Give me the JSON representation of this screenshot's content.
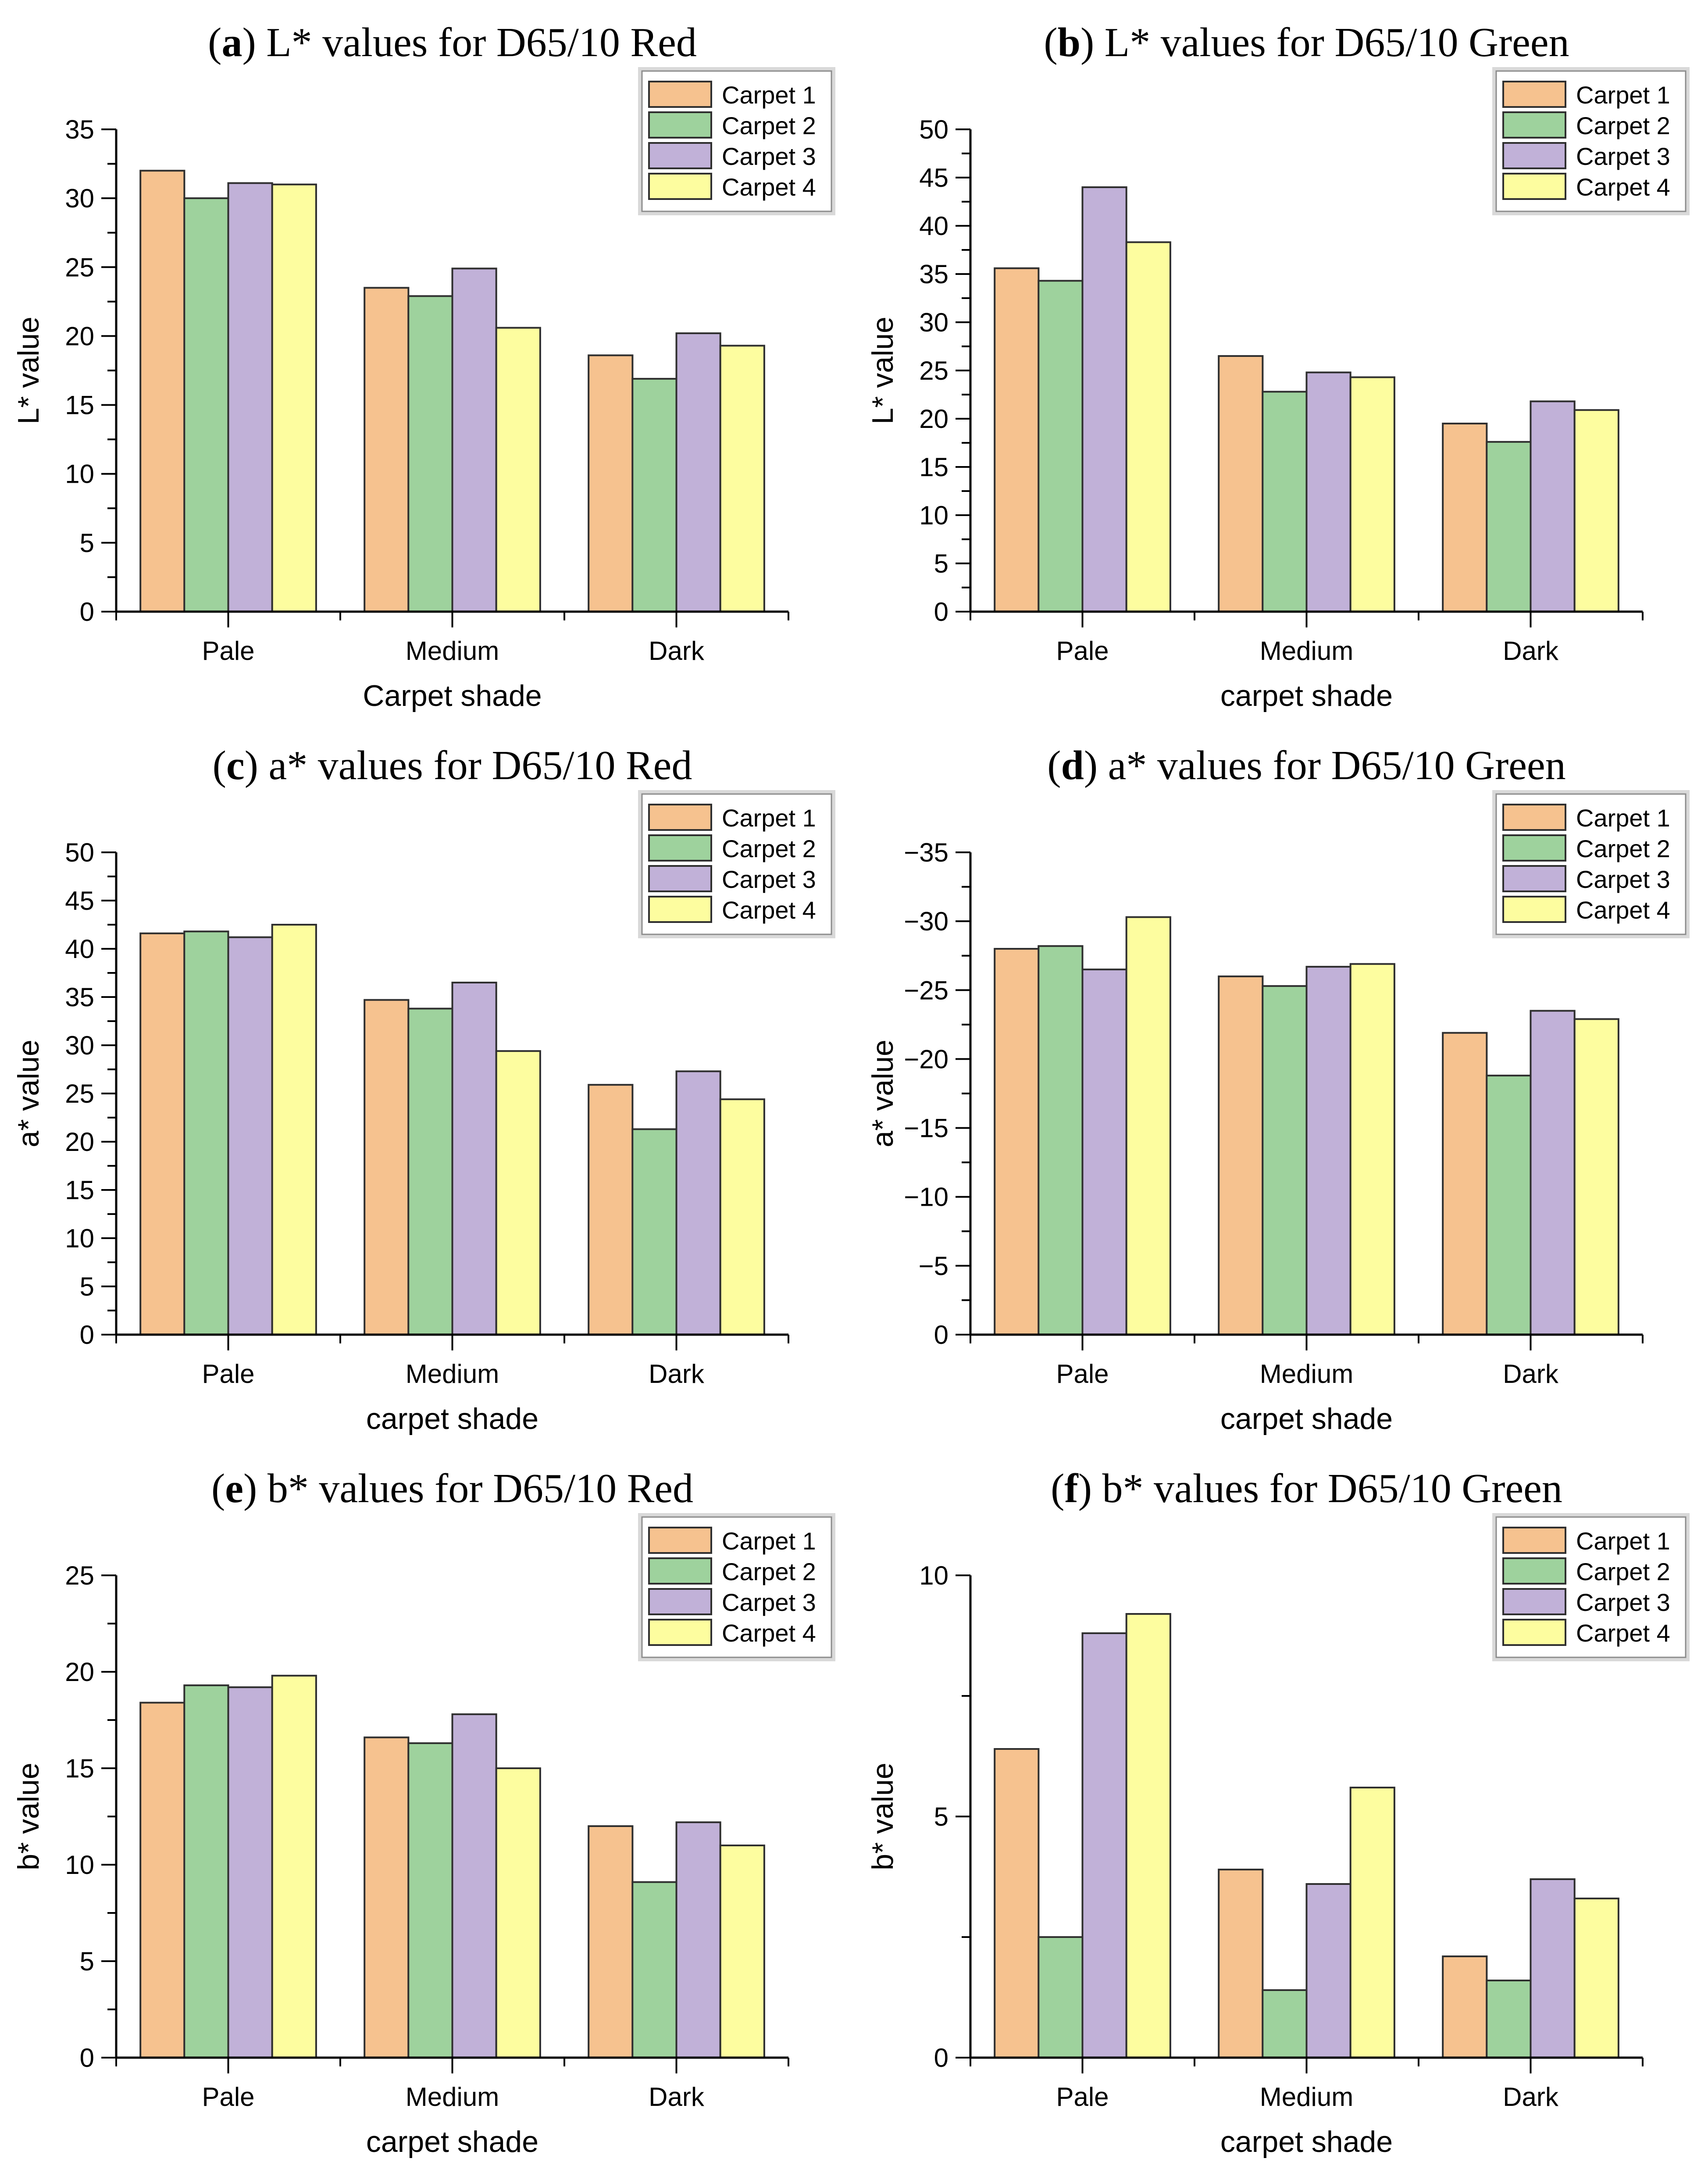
{
  "figure": {
    "background": "#ffffff",
    "axis_color": "#000000",
    "bar_stroke_color": "#2f2f2f",
    "legend_border_color": "#8c8c8c",
    "legend_outer_frame_color": "#d9d9d9",
    "series_colors": [
      "#F6C28F",
      "#9ED29D",
      "#C1B1D8",
      "#FDFD9F"
    ],
    "legend_labels": [
      "Carpet 1",
      "Carpet 2",
      "Carpet 3",
      "Carpet 4"
    ]
  },
  "chart_data": [
    {
      "id": "a",
      "type": "bar",
      "panel_letter": "a",
      "title": "L* values for D65/10 Red",
      "xlabel": "Carpet shade",
      "ylabel": "L* value",
      "ylim": [
        0,
        35
      ],
      "ytick_step": 5,
      "yminor_step": 2.5,
      "grid": false,
      "legend_position": "top-right",
      "categories": [
        "Pale",
        "Medium",
        "Dark"
      ],
      "series": [
        {
          "name": "Carpet 1",
          "values": [
            32.0,
            23.5,
            18.6
          ]
        },
        {
          "name": "Carpet 2",
          "values": [
            30.0,
            22.9,
            16.9
          ]
        },
        {
          "name": "Carpet 3",
          "values": [
            31.1,
            24.9,
            20.2
          ]
        },
        {
          "name": "Carpet 4",
          "values": [
            31.0,
            20.6,
            19.3
          ]
        }
      ]
    },
    {
      "id": "b",
      "type": "bar",
      "panel_letter": "b",
      "title": "L* values for D65/10 Green",
      "xlabel": "carpet shade",
      "ylabel": "L* value",
      "ylim": [
        0,
        50
      ],
      "ytick_step": 5,
      "yminor_step": 2.5,
      "grid": false,
      "legend_position": "top-right",
      "categories": [
        "Pale",
        "Medium",
        "Dark"
      ],
      "series": [
        {
          "name": "Carpet 1",
          "values": [
            35.6,
            26.5,
            19.5
          ]
        },
        {
          "name": "Carpet 2",
          "values": [
            34.3,
            22.8,
            17.6
          ]
        },
        {
          "name": "Carpet 3",
          "values": [
            44.0,
            24.8,
            21.8
          ]
        },
        {
          "name": "Carpet 4",
          "values": [
            38.3,
            24.3,
            20.9
          ]
        }
      ]
    },
    {
      "id": "c",
      "type": "bar",
      "panel_letter": "c",
      "title": "a* values for D65/10 Red",
      "xlabel": "carpet shade",
      "ylabel": "a* value",
      "ylim": [
        0,
        50
      ],
      "ytick_step": 5,
      "yminor_step": 2.5,
      "grid": false,
      "legend_position": "top-right",
      "categories": [
        "Pale",
        "Medium",
        "Dark"
      ],
      "series": [
        {
          "name": "Carpet 1",
          "values": [
            41.6,
            34.7,
            25.9
          ]
        },
        {
          "name": "Carpet 2",
          "values": [
            41.8,
            33.8,
            21.3
          ]
        },
        {
          "name": "Carpet 3",
          "values": [
            41.2,
            36.5,
            27.3
          ]
        },
        {
          "name": "Carpet 4",
          "values": [
            42.5,
            29.4,
            24.4
          ]
        }
      ]
    },
    {
      "id": "d",
      "type": "bar",
      "panel_letter": "d",
      "title": "a* values for D65/10 Green",
      "xlabel": "carpet shade",
      "ylabel": "a* value",
      "ylim": [
        0,
        -35
      ],
      "ytick_step": 5,
      "yminor_step": 2.5,
      "grid": false,
      "legend_position": "top-right",
      "categories": [
        "Pale",
        "Medium",
        "Dark"
      ],
      "series": [
        {
          "name": "Carpet 1",
          "values": [
            -28.0,
            -26.0,
            -21.9
          ]
        },
        {
          "name": "Carpet 2",
          "values": [
            -28.2,
            -25.3,
            -18.8
          ]
        },
        {
          "name": "Carpet 3",
          "values": [
            -26.5,
            -26.7,
            -23.5
          ]
        },
        {
          "name": "Carpet 4",
          "values": [
            -30.3,
            -26.9,
            -22.9
          ]
        }
      ]
    },
    {
      "id": "e",
      "type": "bar",
      "panel_letter": "e",
      "title": "b* values for D65/10 Red",
      "xlabel": "carpet shade",
      "ylabel": "b* value",
      "ylim": [
        0,
        25
      ],
      "ytick_step": 5,
      "yminor_step": 2.5,
      "grid": false,
      "legend_position": "top-right",
      "categories": [
        "Pale",
        "Medium",
        "Dark"
      ],
      "series": [
        {
          "name": "Carpet 1",
          "values": [
            18.4,
            16.6,
            12.0
          ]
        },
        {
          "name": "Carpet 2",
          "values": [
            19.3,
            16.3,
            9.1
          ]
        },
        {
          "name": "Carpet 3",
          "values": [
            19.2,
            17.8,
            12.2
          ]
        },
        {
          "name": "Carpet 4",
          "values": [
            19.8,
            15.0,
            11.0
          ]
        }
      ]
    },
    {
      "id": "f",
      "type": "bar",
      "panel_letter": "f",
      "title": "b* values for D65/10 Green",
      "xlabel": "carpet shade",
      "ylabel": "b* value",
      "ylim": [
        0,
        10
      ],
      "ytick_step": 5,
      "yminor_step": 2.5,
      "grid": false,
      "legend_position": "top-right",
      "categories": [
        "Pale",
        "Medium",
        "Dark"
      ],
      "series": [
        {
          "name": "Carpet 1",
          "values": [
            6.4,
            3.9,
            2.1
          ]
        },
        {
          "name": "Carpet 2",
          "values": [
            2.5,
            1.4,
            1.6
          ]
        },
        {
          "name": "Carpet 3",
          "values": [
            8.8,
            3.6,
            3.7
          ]
        },
        {
          "name": "Carpet 4",
          "values": [
            9.2,
            5.6,
            3.3
          ]
        }
      ]
    }
  ]
}
